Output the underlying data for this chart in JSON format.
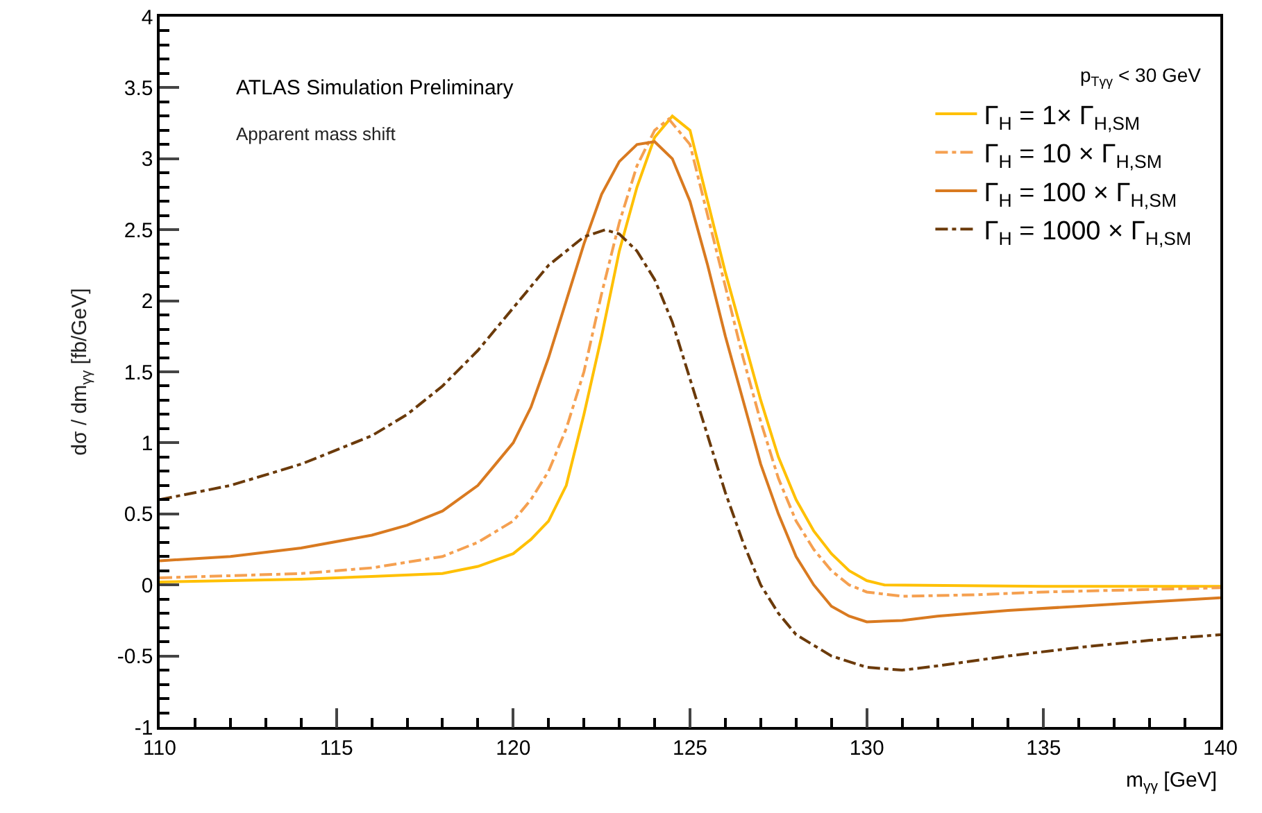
{
  "chart_data": {
    "type": "line",
    "xlabel": "m$_{γγ}$ [GeV]",
    "ylabel": "dσ / dm$_{γγ}$ [fb/GeV]",
    "annotations": [
      "ATLAS Simulation Preliminary",
      "Apparent mass shift",
      "p$_{Tγγ}$ < 30 GeV"
    ],
    "xlim": [
      110,
      140
    ],
    "xticks": [
      110,
      115,
      120,
      125,
      130,
      135,
      140
    ],
    "ylim": [
      -1,
      4
    ],
    "yticks": [
      -1,
      -0.5,
      0,
      0.5,
      1,
      1.5,
      2,
      2.5,
      3,
      3.5,
      4
    ],
    "grid": false,
    "legend": "top right",
    "marker": "none",
    "series": [
      {
        "name": "Γ$_{H}$ = 1× Γ$_{H,SM}$",
        "color": "#ffc000",
        "line_style": "solid",
        "x": [
          110,
          114,
          116,
          118,
          119,
          120,
          120.5,
          121,
          121.5,
          122,
          122.5,
          123,
          123.5,
          124,
          124.5,
          125,
          125.5,
          126,
          126.5,
          127,
          127.5,
          128,
          128.5,
          129,
          129.5,
          130,
          130.5,
          135,
          140
        ],
        "values": [
          0.02,
          0.04,
          0.06,
          0.08,
          0.13,
          0.22,
          0.32,
          0.45,
          0.7,
          1.2,
          1.75,
          2.35,
          2.8,
          3.15,
          3.3,
          3.2,
          2.7,
          2.2,
          1.75,
          1.3,
          0.9,
          0.6,
          0.38,
          0.22,
          0.1,
          0.03,
          0.0,
          -0.01,
          -0.01
        ]
      },
      {
        "name": "Γ$_{H}$ = 10 × Γ$_{H,SM}$",
        "color": "#f5a050",
        "line_style": "dashed",
        "x": [
          110,
          114,
          116,
          118,
          119,
          120,
          120.5,
          121,
          121.5,
          122,
          122.5,
          123,
          123.5,
          124,
          124.4,
          125,
          125.5,
          126,
          126.5,
          127,
          127.5,
          128,
          128.5,
          129,
          129.5,
          130,
          131,
          133,
          135,
          140
        ],
        "values": [
          0.05,
          0.08,
          0.12,
          0.2,
          0.3,
          0.45,
          0.6,
          0.8,
          1.1,
          1.5,
          2.05,
          2.55,
          2.95,
          3.2,
          3.28,
          3.1,
          2.6,
          2.1,
          1.6,
          1.15,
          0.75,
          0.45,
          0.25,
          0.1,
          0.0,
          -0.05,
          -0.08,
          -0.07,
          -0.05,
          -0.02
        ]
      },
      {
        "name": "Γ$_{H}$ = 100 × Γ$_{H,SM}$",
        "color": "#d97a20",
        "line_style": "solid",
        "x": [
          110,
          112,
          114,
          116,
          117,
          118,
          119,
          119.5,
          120,
          120.5,
          121,
          121.5,
          122,
          122.5,
          123,
          123.5,
          124,
          124.5,
          125,
          125.5,
          126,
          126.5,
          127,
          127.5,
          128,
          128.5,
          129,
          129.5,
          130,
          131,
          132,
          134,
          136,
          138,
          140
        ],
        "values": [
          0.17,
          0.2,
          0.26,
          0.35,
          0.42,
          0.52,
          0.7,
          0.85,
          1.0,
          1.25,
          1.6,
          2.0,
          2.4,
          2.75,
          2.98,
          3.1,
          3.12,
          3.0,
          2.7,
          2.25,
          1.75,
          1.3,
          0.85,
          0.5,
          0.2,
          0.0,
          -0.15,
          -0.22,
          -0.26,
          -0.25,
          -0.22,
          -0.18,
          -0.15,
          -0.12,
          -0.09
        ]
      },
      {
        "name": "Γ$_{H}$ = 1000 × Γ$_{H,SM}$",
        "color": "#6b3a0a",
        "line_style": "dashed",
        "x": [
          110,
          112,
          114,
          116,
          117,
          118,
          119,
          120,
          121,
          122,
          122.6,
          123,
          123.5,
          124,
          124.5,
          125,
          125.5,
          126,
          126.5,
          127,
          127.5,
          128,
          129,
          130,
          131,
          132,
          134,
          136,
          138,
          140
        ],
        "values": [
          0.6,
          0.7,
          0.85,
          1.05,
          1.2,
          1.4,
          1.65,
          1.95,
          2.25,
          2.45,
          2.5,
          2.47,
          2.35,
          2.15,
          1.85,
          1.45,
          1.05,
          0.65,
          0.3,
          0.0,
          -0.2,
          -0.35,
          -0.5,
          -0.58,
          -0.6,
          -0.57,
          -0.5,
          -0.44,
          -0.39,
          -0.35
        ]
      }
    ]
  }
}
